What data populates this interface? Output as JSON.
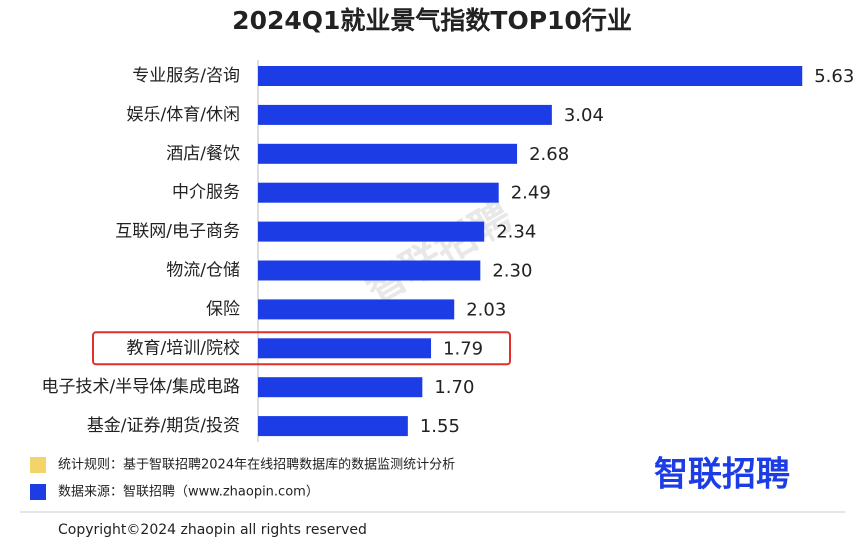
{
  "chart_data": {
    "type": "hbar",
    "title": "2024Q1就业景气指数TOP10行业",
    "categories": [
      "专业服务/咨询",
      "娱乐/体育/休闲",
      "酒店/餐饮",
      "中介服务",
      "互联网/电子商务",
      "物流/仓储",
      "保险",
      "教育/培训/院校",
      "电子技术/半导体/集成电路",
      "基金/证券/期货/投资"
    ],
    "values": [
      5.63,
      3.04,
      2.68,
      2.49,
      2.34,
      2.3,
      2.03,
      1.79,
      1.7,
      1.55
    ],
    "value_labels": [
      "5.63",
      "3.04",
      "2.68",
      "2.49",
      "2.34",
      "2.30",
      "2.03",
      "1.79",
      "1.70",
      "1.55"
    ],
    "color": "#1c3ce6",
    "xlim": [
      0,
      6
    ],
    "highlight": {
      "index": 7,
      "color": "#e0302c"
    },
    "watermark": "智联招聘",
    "notes": [
      {
        "text": "统计规则：基于智联招聘2024年在线招聘数据库的数据监测统计分析",
        "color": "#f5d36b"
      },
      {
        "text": "数据来源：智联招聘（www.zhaopin.com）",
        "color": "#1c3ce6"
      }
    ],
    "logo": "智联招聘",
    "copyright": "Copyright©2024 zhaopin all rights reserved"
  }
}
